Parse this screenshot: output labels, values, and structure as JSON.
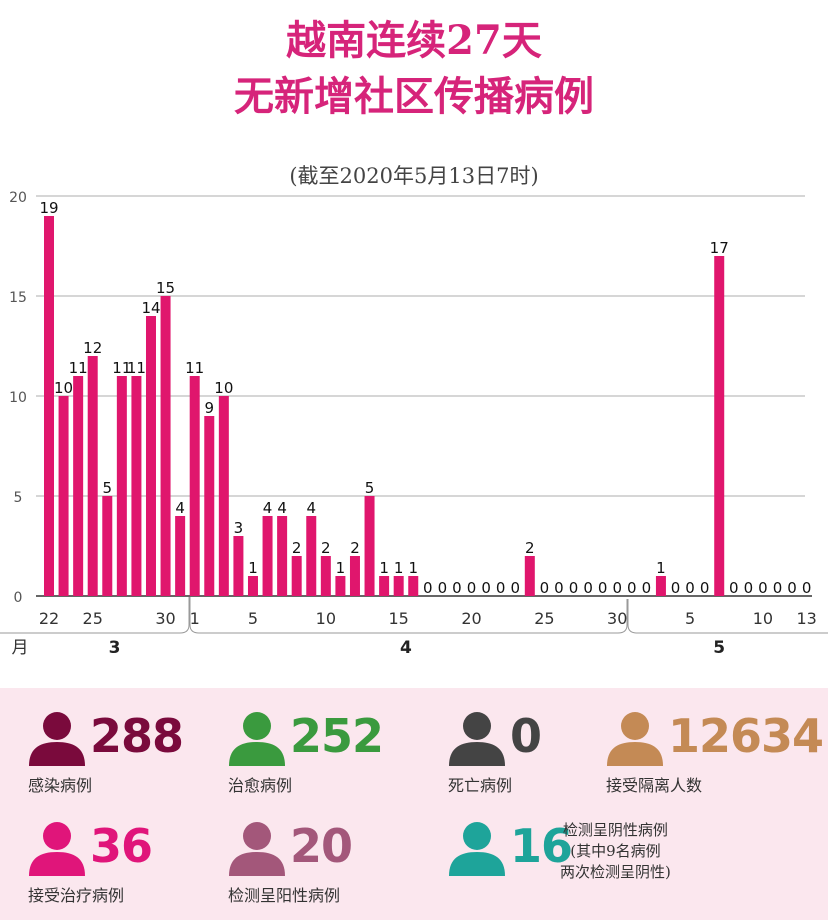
{
  "header": {
    "title_line1": "越南连续27天",
    "title_line2": "无新增社区传播病例",
    "subtitle": "(截至2020年5月13日7时)"
  },
  "colors": {
    "bar": "#e0166d",
    "title": "#d6247a",
    "grid": "#bdbdbd",
    "stats_background": "#fbe7ee"
  },
  "chart_data": {
    "type": "bar",
    "title": "",
    "ylim": [
      0,
      20
    ],
    "yticks": [
      0,
      5,
      10,
      15,
      20
    ],
    "grid": true,
    "x": [
      "3/22",
      "3/23",
      "3/24",
      "3/25",
      "3/26",
      "3/27",
      "3/28",
      "3/29",
      "3/30",
      "3/31",
      "4/1",
      "4/2",
      "4/3",
      "4/4",
      "4/5",
      "4/6",
      "4/7",
      "4/8",
      "4/9",
      "4/10",
      "4/11",
      "4/12",
      "4/13",
      "4/14",
      "4/15",
      "4/16",
      "4/17",
      "4/18",
      "4/19",
      "4/20",
      "4/21",
      "4/22",
      "4/23",
      "4/24",
      "4/25",
      "4/26",
      "4/27",
      "4/28",
      "4/29",
      "4/30",
      "5/1",
      "5/2",
      "5/3",
      "5/4",
      "5/5",
      "5/6",
      "5/7",
      "5/8",
      "5/9",
      "5/10",
      "5/11",
      "5/12",
      "5/13"
    ],
    "values": [
      19,
      10,
      11,
      12,
      5,
      11,
      11,
      14,
      15,
      4,
      11,
      9,
      10,
      3,
      1,
      4,
      4,
      2,
      4,
      2,
      1,
      2,
      5,
      1,
      1,
      1,
      0,
      0,
      0,
      0,
      0,
      0,
      0,
      2,
      0,
      0,
      0,
      0,
      0,
      0,
      0,
      0,
      1,
      0,
      0,
      0,
      17,
      0,
      0,
      0,
      0,
      0,
      0
    ],
    "x_tick_labels": [
      {
        "index": 0,
        "label": "22"
      },
      {
        "index": 3,
        "label": "25"
      },
      {
        "index": 8,
        "label": "30"
      },
      {
        "index": 10,
        "label": "1"
      },
      {
        "index": 14,
        "label": "5"
      },
      {
        "index": 19,
        "label": "10"
      },
      {
        "index": 24,
        "label": "15"
      },
      {
        "index": 29,
        "label": "20"
      },
      {
        "index": 34,
        "label": "25"
      },
      {
        "index": 39,
        "label": "30"
      },
      {
        "index": 44,
        "label": "5"
      },
      {
        "index": 49,
        "label": "10"
      },
      {
        "index": 52,
        "label": "13"
      }
    ],
    "month_axis_label": "月",
    "months": [
      {
        "label": "3",
        "start": 0,
        "end": 9
      },
      {
        "label": "4",
        "start": 10,
        "end": 39
      },
      {
        "label": "5",
        "start": 40,
        "end": 52
      }
    ]
  },
  "stats": [
    {
      "value": "288",
      "label": "感染病例",
      "color": "#7a0a3c"
    },
    {
      "value": "252",
      "label": "治愈病例",
      "color": "#3a9a3e"
    },
    {
      "value": "0",
      "label": "死亡病例",
      "color": "#444444"
    },
    {
      "value": "12634",
      "label": "接受隔离人数",
      "color": "#c48a55"
    },
    {
      "value": "36",
      "label": "接受治疗病例",
      "color": "#e0157a"
    },
    {
      "value": "20",
      "label": "检测呈阳性病例",
      "color": "#a3577a"
    },
    {
      "value": "16",
      "label_lines": [
        "检测呈阴性病例",
        "(其中9名病例",
        "两次检测呈阴性)"
      ],
      "color": "#1ea49a"
    }
  ]
}
